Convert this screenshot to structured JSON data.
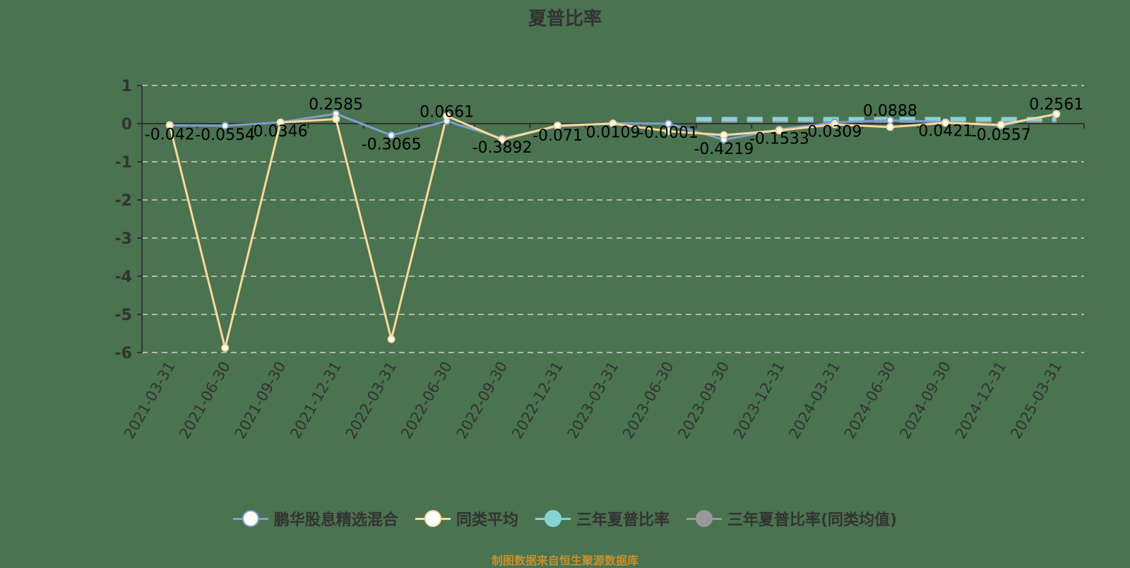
{
  "title": "夏普比率",
  "source": "制图数据来自恒生聚源数据库",
  "colors": {
    "fund": "#7e9fd0",
    "peer": "#fcd998",
    "three_year": "#86d3d6",
    "three_year_peer": "#999999",
    "grid": "#d0d0d0",
    "axis": "#333333",
    "background": "#4a7350"
  },
  "legend": [
    {
      "label": "鹏华股息精选混合",
      "color": "#7e9fd0",
      "fill": "#ffffff"
    },
    {
      "label": "同类平均",
      "color": "#fcd998",
      "fill": "#ffffff"
    },
    {
      "label": "三年夏普比率",
      "color": "#86d3d6",
      "fill": "#86d3d6"
    },
    {
      "label": "三年夏普比率(同类均值)",
      "color": "#999999",
      "fill": "#999999"
    }
  ],
  "chart_data": {
    "type": "line",
    "title": "夏普比率",
    "xlabel": "",
    "ylabel": "",
    "ylim": [
      -6,
      1
    ],
    "yticks": [
      1,
      0,
      -1,
      -2,
      -3,
      -4,
      -5,
      -6
    ],
    "grid": true,
    "legend_position": "bottom",
    "categories": [
      "2021-03-31",
      "2021-06-30",
      "2021-09-30",
      "2021-12-31",
      "2022-03-31",
      "2022-06-30",
      "2022-09-30",
      "2022-12-31",
      "2023-03-31",
      "2023-06-30",
      "2023-09-30",
      "2023-12-31",
      "2024-03-31",
      "2024-06-30",
      "2024-09-30",
      "2024-12-31",
      "2025-03-31"
    ],
    "series": [
      {
        "name": "鹏华股息精选混合",
        "values": [
          -0.042,
          -0.0554,
          0.0346,
          0.2585,
          -0.3065,
          0.0661,
          -0.3892,
          -0.071,
          0.0109,
          -0.0001,
          -0.4219,
          -0.1533,
          0.0309,
          0.0888,
          0.0421,
          -0.0557,
          0.2561
        ],
        "labels": [
          "-0.042",
          "-0.0554",
          "0.0346",
          "0.2585",
          "-0.3065",
          "0.0661",
          "-0.3892",
          "-0.071",
          "0.0109",
          "-0.0001",
          "-0.4219",
          "-0.1533",
          "0.0309",
          "0.0888",
          "0.0421",
          "-0.0557",
          "0.2561"
        ]
      },
      {
        "name": "同类平均",
        "values": [
          -0.04,
          -5.88,
          0.03,
          0.12,
          -5.65,
          0.2,
          -0.42,
          -0.05,
          0.0,
          -0.2,
          -0.3,
          -0.18,
          -0.02,
          -0.09,
          0.02,
          -0.03,
          0.25
        ]
      },
      {
        "name": "三年夏普比率",
        "values": [
          null,
          null,
          null,
          null,
          null,
          null,
          null,
          null,
          null,
          null,
          0.12,
          0.12,
          0.12,
          0.12,
          0.12,
          0.12,
          0.12
        ]
      },
      {
        "name": "三年夏普比率(同类均值)",
        "values": [
          null,
          null,
          null,
          null,
          null,
          null,
          null,
          null,
          null,
          null,
          0.08,
          0.08,
          0.08,
          0.08,
          0.08,
          0.08,
          0.08
        ]
      }
    ]
  }
}
